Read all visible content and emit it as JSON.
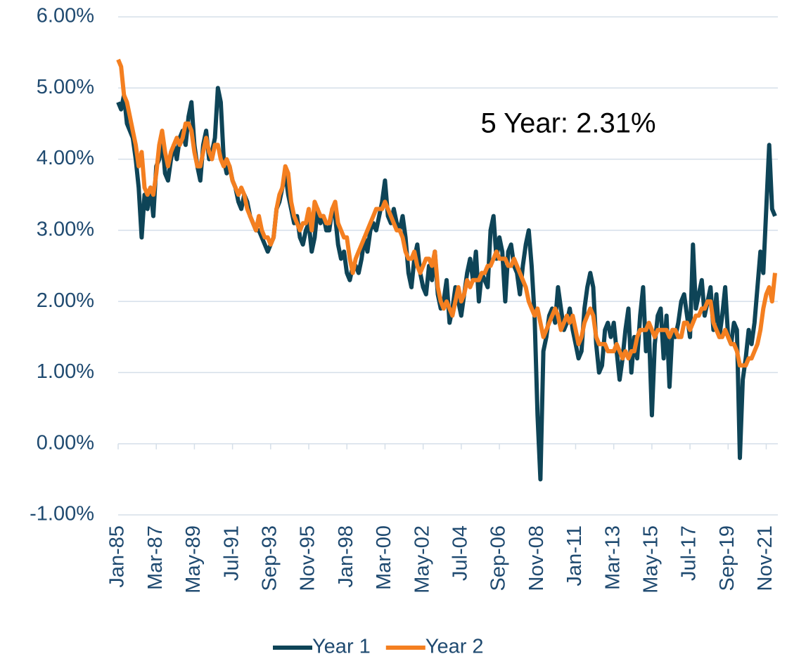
{
  "chart_data": {
    "type": "line",
    "annotation": "5 Year: 2.31%",
    "categories": [
      "Jan-85",
      null,
      null,
      null,
      null,
      null,
      null,
      null,
      null,
      null,
      null,
      null,
      null,
      "Mar-87",
      null,
      null,
      null,
      null,
      null,
      null,
      null,
      null,
      null,
      null,
      null,
      null,
      "May-89",
      null,
      null,
      null,
      null,
      null,
      null,
      null,
      null,
      null,
      null,
      null,
      null,
      "Jul-91",
      null,
      null,
      null,
      null,
      null,
      null,
      null,
      null,
      null,
      null,
      null,
      null,
      "Sep-93",
      null,
      null,
      null,
      null,
      null,
      null,
      null,
      null,
      null,
      null,
      null,
      null,
      "Nov-95",
      null,
      null,
      null,
      null,
      null,
      null,
      null,
      null,
      null,
      null,
      null,
      null,
      "Jan-98",
      null,
      null,
      null,
      null,
      null,
      null,
      null,
      null,
      null,
      null,
      null,
      null,
      "Mar-00",
      null,
      null,
      null,
      null,
      null,
      null,
      null,
      null,
      null,
      null,
      null,
      null,
      "May-02",
      null,
      null,
      null,
      null,
      null,
      null,
      null,
      null,
      null,
      null,
      null,
      null,
      "Jul-04",
      null,
      null,
      null,
      null,
      null,
      null,
      null,
      null,
      null,
      null,
      null,
      null,
      "Sep-06",
      null,
      null,
      null,
      null,
      null,
      null,
      null,
      null,
      null,
      null,
      null,
      null,
      "Nov-08",
      null,
      null,
      null,
      null,
      null,
      null,
      null,
      null,
      null,
      null,
      null,
      null,
      "Jan-11",
      null,
      null,
      null,
      null,
      null,
      null,
      null,
      null,
      null,
      null,
      null,
      null,
      "Mar-13",
      null,
      null,
      null,
      null,
      null,
      null,
      null,
      null,
      null,
      null,
      null,
      null,
      "May-15",
      null,
      null,
      null,
      null,
      null,
      null,
      null,
      null,
      null,
      null,
      null,
      null,
      "Jul-17",
      null,
      null,
      null,
      null,
      null,
      null,
      null,
      null,
      null,
      null,
      null,
      null,
      "Sep-19",
      null,
      null,
      null,
      null,
      null,
      null,
      null,
      null,
      null,
      null,
      null,
      null,
      "Nov-21",
      null,
      null,
      null
    ],
    "series": [
      {
        "name": "Year 1",
        "color": "#0e4457",
        "values": [
          4.8,
          4.7,
          4.9,
          4.5,
          4.4,
          4.3,
          4.0,
          3.6,
          2.9,
          3.5,
          3.3,
          3.6,
          3.2,
          3.9,
          4.0,
          4.3,
          3.8,
          3.7,
          4.0,
          4.2,
          4.0,
          4.3,
          4.4,
          4.2,
          4.6,
          4.8,
          4.2,
          3.9,
          3.7,
          4.2,
          4.4,
          4.0,
          4.1,
          4.3,
          5.0,
          4.8,
          4.0,
          3.8,
          3.9,
          3.7,
          3.6,
          3.4,
          3.3,
          3.5,
          3.4,
          3.2,
          3.1,
          3.0,
          3.0,
          2.9,
          2.8,
          2.7,
          2.8,
          2.9,
          3.3,
          3.4,
          3.6,
          3.8,
          3.5,
          3.3,
          3.1,
          3.2,
          2.9,
          2.8,
          3.0,
          3.1,
          2.7,
          2.9,
          3.3,
          3.1,
          3.2,
          3.0,
          3.0,
          3.3,
          3.2,
          2.8,
          2.6,
          2.7,
          2.4,
          2.3,
          2.5,
          2.5,
          2.4,
          2.6,
          2.9,
          2.7,
          3.0,
          3.1,
          3.0,
          3.2,
          3.4,
          3.7,
          3.2,
          3.1,
          3.3,
          3.1,
          3.0,
          3.2,
          2.9,
          2.4,
          2.2,
          2.6,
          2.8,
          2.4,
          2.2,
          2.1,
          2.5,
          2.3,
          2.7,
          2.1,
          1.9,
          2.0,
          2.3,
          1.7,
          1.9,
          2.2,
          2.0,
          1.8,
          2.1,
          2.4,
          2.6,
          2.3,
          2.7,
          2.0,
          2.4,
          2.3,
          2.2,
          3.0,
          3.2,
          2.6,
          2.9,
          2.7,
          2.0,
          2.7,
          2.8,
          2.5,
          2.4,
          2.1,
          2.5,
          2.8,
          3.0,
          2.5,
          1.8,
          0.4,
          -0.5,
          1.3,
          1.5,
          1.8,
          1.9,
          1.7,
          2.2,
          1.9,
          1.6,
          1.7,
          1.9,
          1.6,
          1.4,
          1.2,
          1.3,
          1.9,
          2.2,
          2.4,
          2.2,
          1.4,
          1.0,
          1.1,
          1.6,
          1.7,
          1.5,
          1.7,
          1.3,
          0.9,
          1.2,
          1.6,
          1.9,
          1.0,
          1.5,
          1.2,
          1.8,
          2.2,
          1.3,
          1.6,
          0.4,
          1.4,
          1.8,
          1.9,
          1.2,
          1.8,
          0.8,
          1.6,
          1.5,
          1.7,
          2.0,
          2.1,
          1.8,
          1.5,
          2.8,
          1.9,
          2.1,
          2.3,
          1.8,
          2.0,
          2.2,
          1.6,
          2.1,
          1.5,
          1.8,
          2.2,
          1.5,
          1.4,
          1.7,
          1.6,
          -0.2,
          0.9,
          1.2,
          1.6,
          1.4,
          1.7,
          2.2,
          2.7,
          2.4,
          3.3,
          4.2,
          3.3,
          3.2
        ]
      },
      {
        "name": "Year 2",
        "color": "#f47f20",
        "values": [
          5.4,
          5.3,
          4.9,
          4.8,
          4.6,
          4.4,
          4.2,
          3.9,
          4.1,
          3.6,
          3.5,
          3.6,
          3.5,
          3.8,
          4.2,
          4.4,
          4.1,
          3.9,
          4.1,
          4.2,
          4.3,
          4.2,
          4.3,
          4.5,
          4.5,
          4.4,
          4.1,
          3.9,
          3.9,
          4.1,
          4.3,
          4.1,
          4.0,
          4.2,
          4.2,
          4.0,
          3.9,
          4.0,
          3.9,
          3.7,
          3.6,
          3.5,
          3.6,
          3.5,
          3.3,
          3.2,
          3.1,
          3.0,
          3.2,
          3.0,
          2.9,
          2.9,
          2.8,
          2.9,
          3.3,
          3.5,
          3.6,
          3.9,
          3.8,
          3.4,
          3.2,
          3.1,
          3.0,
          3.1,
          3.1,
          3.3,
          3.0,
          3.4,
          3.3,
          3.2,
          3.2,
          3.1,
          3.1,
          3.3,
          3.4,
          3.1,
          3.0,
          2.9,
          2.9,
          2.6,
          2.4,
          2.6,
          2.7,
          2.8,
          2.9,
          3.0,
          3.1,
          3.2,
          3.3,
          3.3,
          3.3,
          3.4,
          3.3,
          3.2,
          3.1,
          3.0,
          3.0,
          2.9,
          2.7,
          2.6,
          2.6,
          2.7,
          2.5,
          2.4,
          2.5,
          2.6,
          2.6,
          2.5,
          2.7,
          2.2,
          2.0,
          1.9,
          2.0,
          1.9,
          1.8,
          2.0,
          2.2,
          2.0,
          2.1,
          2.3,
          2.2,
          2.3,
          2.3,
          2.3,
          2.4,
          2.4,
          2.5,
          2.5,
          2.6,
          2.7,
          2.6,
          2.6,
          2.6,
          2.5,
          2.5,
          2.6,
          2.5,
          2.4,
          2.3,
          2.2,
          2.0,
          1.9,
          1.8,
          1.9,
          1.7,
          1.5,
          1.6,
          1.7,
          1.8,
          1.9,
          1.8,
          1.6,
          1.7,
          1.8,
          1.7,
          1.8,
          1.6,
          1.4,
          1.5,
          1.7,
          1.8,
          1.9,
          1.8,
          1.5,
          1.4,
          1.4,
          1.4,
          1.3,
          1.3,
          1.3,
          1.4,
          1.3,
          1.2,
          1.3,
          1.2,
          1.3,
          1.3,
          1.5,
          1.6,
          1.6,
          1.6,
          1.7,
          1.6,
          1.5,
          1.6,
          1.6,
          1.6,
          1.6,
          1.5,
          1.6,
          1.6,
          1.5,
          1.5,
          1.7,
          1.7,
          1.6,
          1.7,
          1.8,
          1.8,
          1.9,
          1.9,
          2.0,
          2.0,
          1.7,
          1.6,
          1.5,
          1.5,
          1.6,
          1.5,
          1.4,
          1.4,
          1.3,
          1.1,
          1.1,
          1.1,
          1.2,
          1.2,
          1.3,
          1.4,
          1.6,
          1.9,
          2.1,
          2.2,
          2.0,
          2.4
        ]
      }
    ],
    "ylim": [
      -1,
      6
    ],
    "yticks": [
      {
        "value": -1,
        "label": "-1.00%"
      },
      {
        "value": 0,
        "label": "0.00%"
      },
      {
        "value": 1,
        "label": "1.00%"
      },
      {
        "value": 2,
        "label": "2.00%"
      },
      {
        "value": 3,
        "label": "3.00%"
      },
      {
        "value": 4,
        "label": "4.00%"
      },
      {
        "value": 5,
        "label": "5.00%"
      },
      {
        "value": 6,
        "label": "6.00%"
      }
    ],
    "grid": true,
    "legend": "bottom"
  }
}
